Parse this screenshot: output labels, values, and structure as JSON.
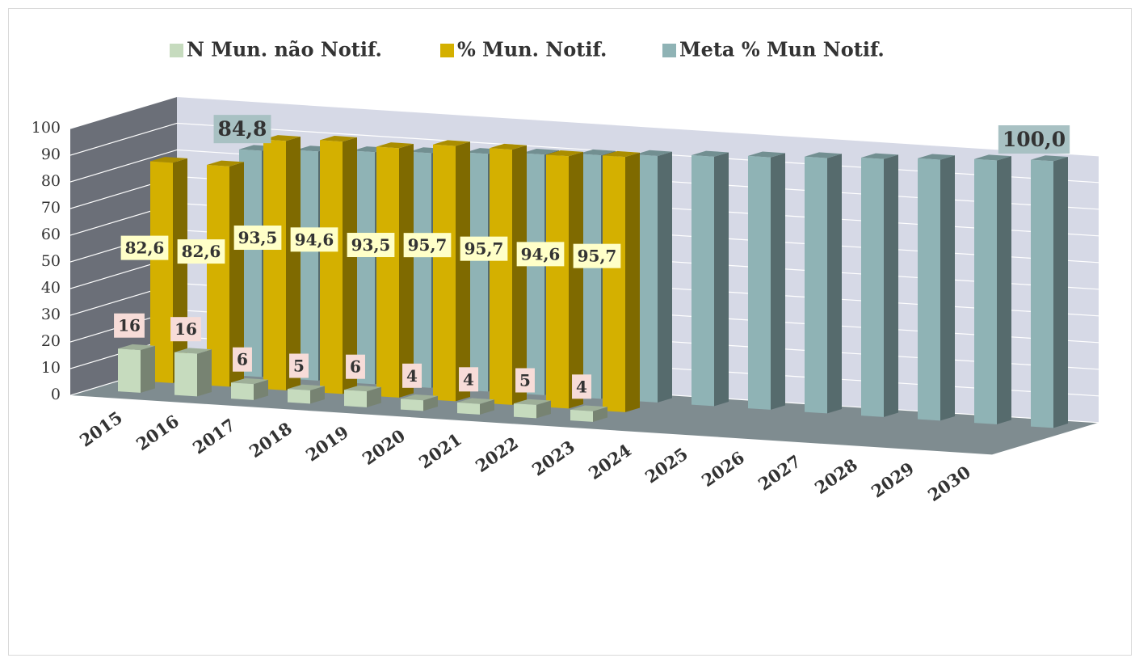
{
  "chart_data": {
    "type": "bar3d",
    "categories": [
      "2015",
      "2016",
      "2017",
      "2018",
      "2019",
      "2020",
      "2021",
      "2022",
      "2023",
      "2024",
      "2025",
      "2026",
      "2027",
      "2028",
      "2029",
      "2030"
    ],
    "series": [
      {
        "name": "N Mun. não Notif.",
        "color": "#c6dbbe",
        "values": [
          16,
          16,
          6,
          5,
          6,
          4,
          4,
          5,
          4,
          null,
          null,
          null,
          null,
          null,
          null,
          null
        ]
      },
      {
        "name": "% Mun. Notif.",
        "color": "#d4b000",
        "values": [
          82.6,
          82.6,
          93.5,
          94.6,
          93.5,
          95.7,
          95.7,
          94.6,
          95.7,
          null,
          null,
          null,
          null,
          null,
          null,
          null
        ],
        "value_labels": [
          "82,6",
          "82,6",
          "93,5",
          "94,6",
          "93,5",
          "95,7",
          "95,7",
          "94,6",
          "95,7",
          null,
          null,
          null,
          null,
          null,
          null,
          null
        ]
      },
      {
        "name": "Meta % Mun Notif.",
        "color": "#8fb3b5",
        "values": [
          null,
          84.8,
          85.9,
          87.0,
          88.0,
          89.1,
          90.2,
          91.3,
          92.4,
          93.5,
          94.6,
          95.7,
          96.7,
          97.8,
          98.9,
          100.0
        ],
        "value_labels": [
          null,
          "84,8",
          null,
          null,
          null,
          null,
          null,
          null,
          null,
          null,
          null,
          null,
          null,
          null,
          null,
          "100,0"
        ]
      }
    ],
    "ylim": [
      0,
      100
    ],
    "yticks": [
      0,
      10,
      20,
      30,
      40,
      50,
      60,
      70,
      80,
      90,
      100
    ],
    "grid": true,
    "legend": "top"
  }
}
